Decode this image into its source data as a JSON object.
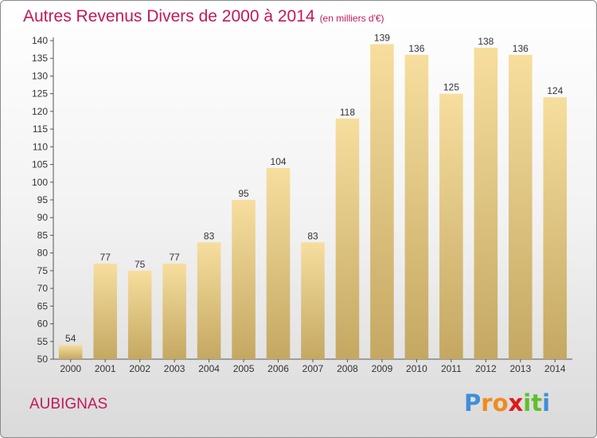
{
  "header": {
    "title": "Autres Revenus Divers de 2000 à 2014",
    "unit": "(en milliers d'€)"
  },
  "footer": {
    "location": "AUBIGNAS",
    "logo": {
      "letters": [
        {
          "ch": "P",
          "color": "#3f8fd8"
        },
        {
          "ch": "r",
          "color": "#f08a1c"
        },
        {
          "ch": "o",
          "color": "#f08a1c"
        },
        {
          "ch": "x",
          "color": "#e0191b"
        },
        {
          "ch": "i",
          "color": "#5fbf2f"
        },
        {
          "ch": "t",
          "color": "#5fbf2f"
        },
        {
          "ch": "i",
          "color": "#3f8fd8"
        }
      ]
    }
  },
  "colors": {
    "title": "#c2185b",
    "bar_light": "#f7de9e",
    "bar_dark": "#c4a862",
    "axis": "#555555"
  },
  "chart_data": {
    "type": "bar",
    "title": "Autres Revenus Divers de 2000 à 2014",
    "subtitle": "(en milliers d'€)",
    "xlabel": "",
    "ylabel": "",
    "categories": [
      "2000",
      "2001",
      "2002",
      "2003",
      "2004",
      "2005",
      "2006",
      "2007",
      "2008",
      "2009",
      "2010",
      "2011",
      "2012",
      "2013",
      "2014"
    ],
    "values": [
      54,
      77,
      75,
      77,
      83,
      95,
      104,
      83,
      118,
      139,
      136,
      125,
      138,
      136,
      124
    ],
    "ylim": [
      50,
      140
    ],
    "yticks": [
      50,
      55,
      60,
      65,
      70,
      75,
      80,
      85,
      90,
      95,
      100,
      105,
      110,
      115,
      120,
      125,
      130,
      135,
      140
    ],
    "grid": false,
    "legend": "none"
  }
}
